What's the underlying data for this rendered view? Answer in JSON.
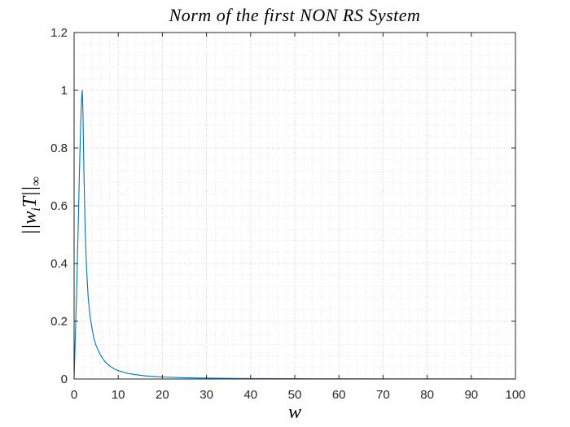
{
  "chart_data": {
    "type": "line",
    "title": "Norm of the first NON RS System",
    "xlabel": "w",
    "ylabel": "||w_i T||_∞",
    "xlim": [
      0,
      100
    ],
    "ylim": [
      0,
      1.2
    ],
    "x_ticks": [
      "0",
      "10",
      "20",
      "30",
      "40",
      "50",
      "60",
      "70",
      "80",
      "90",
      "100"
    ],
    "y_ticks": [
      "0",
      "0.2",
      "0.4",
      "0.6",
      "0.8",
      "1",
      "1.2"
    ],
    "grid": true,
    "minor_grid": true,
    "series": [
      {
        "color": "#0072BD",
        "x": [
          0,
          0.3,
          0.6,
          0.9,
          1.2,
          1.5,
          1.7,
          1.85,
          2.0,
          2.2,
          2.5,
          2.8,
          3.2,
          3.6,
          4.0,
          4.5,
          5,
          6,
          7,
          8,
          9,
          10,
          12,
          14,
          16,
          18,
          20,
          25,
          30,
          35,
          40,
          50,
          60,
          70,
          80,
          90,
          100
        ],
        "y": [
          0,
          0.16,
          0.32,
          0.51,
          0.71,
          0.89,
          0.97,
          1.0,
          0.93,
          0.74,
          0.52,
          0.39,
          0.28,
          0.22,
          0.18,
          0.14,
          0.115,
          0.082,
          0.06,
          0.046,
          0.036,
          0.029,
          0.02,
          0.015,
          0.011,
          0.009,
          0.007,
          0.0045,
          0.003,
          0.0022,
          0.0017,
          0.0011,
          0.0008,
          0.0006,
          0.0005,
          0.0004,
          0.0003
        ]
      }
    ]
  }
}
